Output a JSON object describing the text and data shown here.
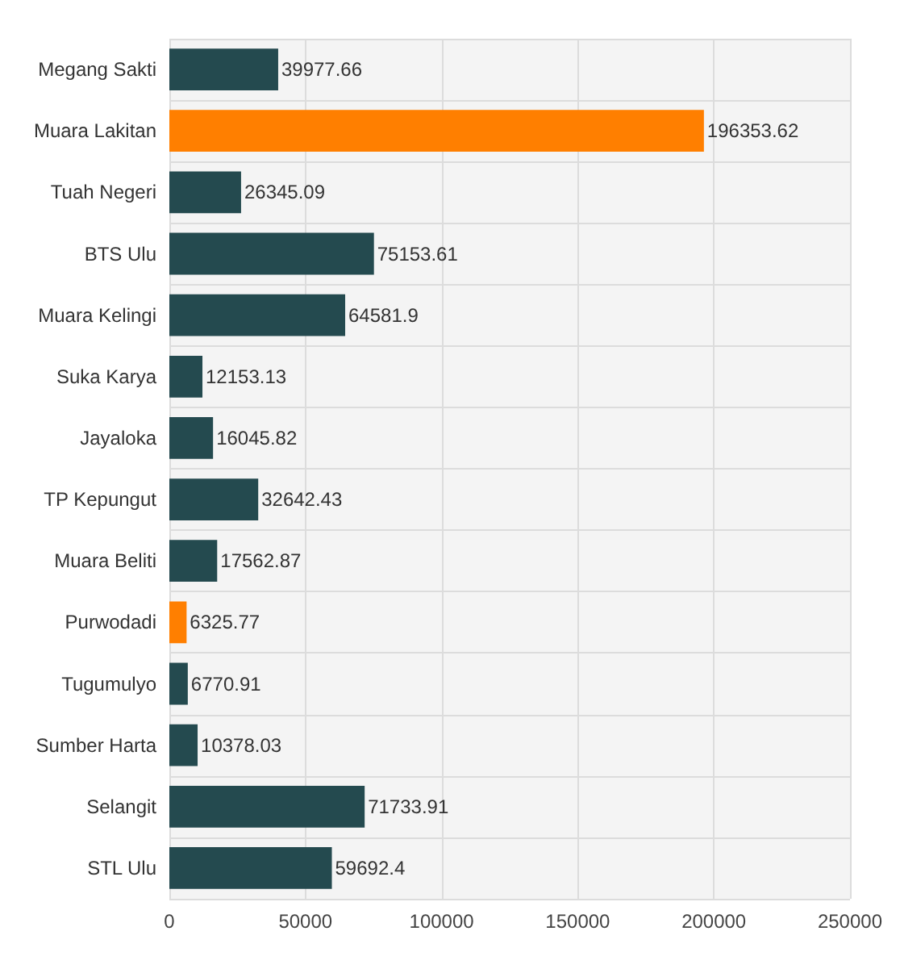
{
  "chart_data": {
    "type": "bar",
    "orientation": "horizontal",
    "categories": [
      "Megang Sakti",
      "Muara Lakitan",
      "Tuah Negeri",
      "BTS Ulu",
      "Muara Kelingi",
      "Suka Karya",
      "Jayaloka",
      "TP Kepungut",
      "Muara Beliti",
      "Purwodadi",
      "Tugumulyo",
      "Sumber Harta",
      "Selangit",
      "STL Ulu"
    ],
    "values": [
      39977.66,
      196353.62,
      26345.09,
      75153.61,
      64581.9,
      12153.13,
      16045.82,
      32642.43,
      17562.87,
      6325.77,
      6770.91,
      10378.03,
      71733.91,
      59692.4
    ],
    "colors": [
      "#244a4f",
      "#ff7f00",
      "#244a4f",
      "#244a4f",
      "#244a4f",
      "#244a4f",
      "#244a4f",
      "#244a4f",
      "#244a4f",
      "#ff7f00",
      "#244a4f",
      "#244a4f",
      "#244a4f",
      "#244a4f"
    ],
    "xlim": [
      0,
      250000
    ],
    "xticks": [
      0,
      50000,
      100000,
      150000,
      200000,
      250000
    ],
    "grid": true,
    "data_labels": true
  }
}
